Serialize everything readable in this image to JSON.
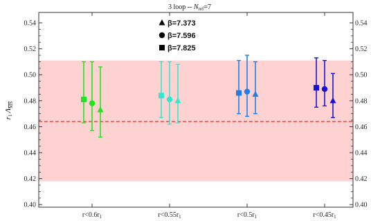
{
  "chart_data": {
    "type": "scatter",
    "title": "3 loop  --  N_ref=7",
    "title_parts": {
      "prefix": "3 loop  --  ",
      "var_main": "N",
      "var_sub": "ref",
      "suffix": "=7"
    },
    "ylabel": "r_1 Λ_MS",
    "ylabel_parts": {
      "r": "r",
      "r_sub": "1",
      "lambda": "Λ",
      "lambda_sub": "MS"
    },
    "ylim": [
      0.398,
      0.548
    ],
    "yticks": [
      "0.40",
      "0.42",
      "0.44",
      "0.46",
      "0.48",
      "0.50",
      "0.52",
      "0.54"
    ],
    "categories": [
      "r<0.6r1",
      "r<0.55r1",
      "r<0.5r1",
      "r<0.45r1"
    ],
    "category_parts": [
      {
        "main": "r<0.6r",
        "sub": "1"
      },
      {
        "main": "r<0.55r",
        "sub": "1"
      },
      {
        "main": "r<0.5r",
        "sub": "1"
      },
      {
        "main": "r<0.45r",
        "sub": "1"
      }
    ],
    "band": {
      "low": 0.418,
      "high": 0.511,
      "center": 0.464,
      "color": "#ffd2d2",
      "line_color": "#e0201b"
    },
    "legend_placement": "top-center",
    "series": [
      {
        "label": "β=7.373",
        "marker": "triangle"
      },
      {
        "label": "β=7.596",
        "marker": "circle"
      },
      {
        "label": "β=7.825",
        "marker": "square"
      }
    ],
    "category_colors": [
      "#1ee61e",
      "#2fe8cf",
      "#1f7fe6",
      "#1a10d8"
    ],
    "points": [
      {
        "category": 0,
        "series": 2,
        "value": 0.481,
        "low": 0.463,
        "high": 0.51
      },
      {
        "category": 0,
        "series": 1,
        "value": 0.478,
        "low": 0.457,
        "high": 0.51
      },
      {
        "category": 0,
        "series": 0,
        "value": 0.473,
        "low": 0.452,
        "high": 0.506
      },
      {
        "category": 1,
        "series": 2,
        "value": 0.484,
        "low": 0.467,
        "high": 0.51
      },
      {
        "category": 1,
        "series": 1,
        "value": 0.481,
        "low": 0.462,
        "high": 0.51
      },
      {
        "category": 1,
        "series": 0,
        "value": 0.48,
        "low": 0.463,
        "high": 0.508
      },
      {
        "category": 2,
        "series": 2,
        "value": 0.486,
        "low": 0.47,
        "high": 0.511
      },
      {
        "category": 2,
        "series": 1,
        "value": 0.487,
        "low": 0.468,
        "high": 0.515
      },
      {
        "category": 2,
        "series": 0,
        "value": 0.485,
        "low": 0.47,
        "high": 0.51
      },
      {
        "category": 3,
        "series": 2,
        "value": 0.49,
        "low": 0.475,
        "high": 0.513
      },
      {
        "category": 3,
        "series": 1,
        "value": 0.489,
        "low": 0.476,
        "high": 0.511
      },
      {
        "category": 3,
        "series": 0,
        "value": 0.48,
        "low": 0.467,
        "high": 0.501
      }
    ]
  }
}
